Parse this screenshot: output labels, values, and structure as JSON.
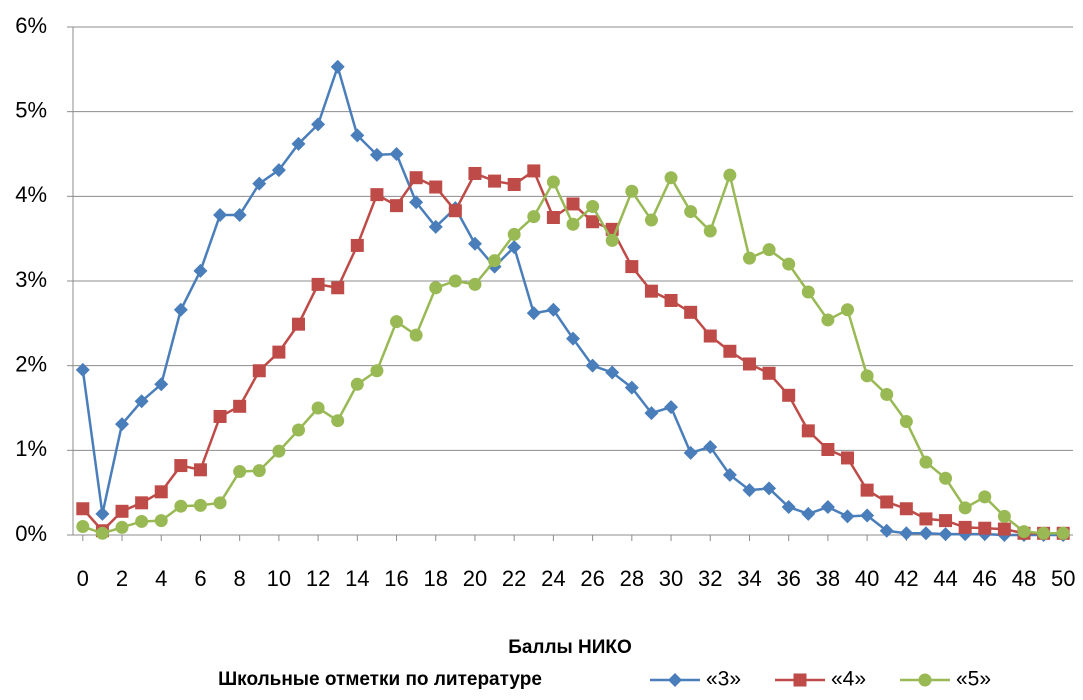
{
  "chart_data": {
    "type": "line",
    "x_label": "Баллы НИКО",
    "legend_title": "Школьные отметки по литературе",
    "x": [
      0,
      1,
      2,
      3,
      4,
      5,
      6,
      7,
      8,
      9,
      10,
      11,
      12,
      13,
      14,
      15,
      16,
      17,
      18,
      19,
      20,
      21,
      22,
      23,
      24,
      25,
      26,
      27,
      28,
      29,
      30,
      31,
      32,
      33,
      34,
      35,
      36,
      37,
      38,
      39,
      40,
      41,
      42,
      43,
      44,
      45,
      46,
      47,
      48,
      49,
      50
    ],
    "xlim": [
      -0.5,
      50.5
    ],
    "xticks": [
      0,
      2,
      4,
      6,
      8,
      10,
      12,
      14,
      16,
      18,
      20,
      22,
      24,
      26,
      28,
      30,
      32,
      34,
      36,
      38,
      40,
      42,
      44,
      46,
      48,
      50
    ],
    "ylim": [
      0,
      6
    ],
    "yticks": [
      {
        "value": 0,
        "label": "0%"
      },
      {
        "value": 1,
        "label": "1%"
      },
      {
        "value": 2,
        "label": "2%"
      },
      {
        "value": 3,
        "label": "3%"
      },
      {
        "value": 4,
        "label": "4%"
      },
      {
        "value": 5,
        "label": "5%"
      },
      {
        "value": 6,
        "label": "6%"
      }
    ],
    "grid": true,
    "legend": "bottom",
    "series": [
      {
        "name": "«3»",
        "color": "#4a7ebb",
        "marker": "diamond",
        "values": [
          1.95,
          0.25,
          1.31,
          1.58,
          1.78,
          2.66,
          3.12,
          3.78,
          3.78,
          4.15,
          4.31,
          4.62,
          4.85,
          5.53,
          4.72,
          4.49,
          4.5,
          3.93,
          3.64,
          3.86,
          3.44,
          3.17,
          3.4,
          2.62,
          2.66,
          2.32,
          2.0,
          1.92,
          1.74,
          1.44,
          1.51,
          0.97,
          1.04,
          0.71,
          0.53,
          0.55,
          0.33,
          0.25,
          0.33,
          0.22,
          0.23,
          0.05,
          0.02,
          0.02,
          0.01,
          0.01,
          0.01,
          0.0,
          0.0,
          0.0,
          0.0
        ]
      },
      {
        "name": "«4»",
        "color": "#be4b48",
        "marker": "square",
        "values": [
          0.31,
          0.05,
          0.28,
          0.38,
          0.51,
          0.82,
          0.77,
          1.4,
          1.52,
          1.94,
          2.16,
          2.49,
          2.96,
          2.92,
          3.42,
          4.02,
          3.89,
          4.22,
          4.11,
          3.83,
          4.27,
          4.18,
          4.14,
          4.3,
          3.75,
          3.91,
          3.7,
          3.61,
          3.17,
          2.88,
          2.77,
          2.63,
          2.35,
          2.17,
          2.02,
          1.91,
          1.65,
          1.23,
          1.01,
          0.91,
          0.53,
          0.39,
          0.31,
          0.19,
          0.17,
          0.09,
          0.08,
          0.07,
          0.02,
          0.02,
          0.02
        ]
      },
      {
        "name": "«5»",
        "color": "#98b954",
        "marker": "circle",
        "values": [
          0.1,
          0.02,
          0.09,
          0.16,
          0.17,
          0.34,
          0.35,
          0.38,
          0.75,
          0.76,
          0.99,
          1.24,
          1.5,
          1.35,
          1.78,
          1.94,
          2.52,
          2.36,
          2.92,
          3.0,
          2.96,
          3.24,
          3.55,
          3.76,
          4.17,
          3.67,
          3.88,
          3.48,
          4.06,
          3.72,
          4.22,
          3.82,
          3.59,
          4.25,
          3.27,
          3.37,
          3.2,
          2.87,
          2.54,
          2.66,
          1.88,
          1.66,
          1.34,
          0.86,
          0.67,
          0.32,
          0.45,
          0.22,
          0.04,
          0.02,
          0.02
        ]
      }
    ]
  }
}
